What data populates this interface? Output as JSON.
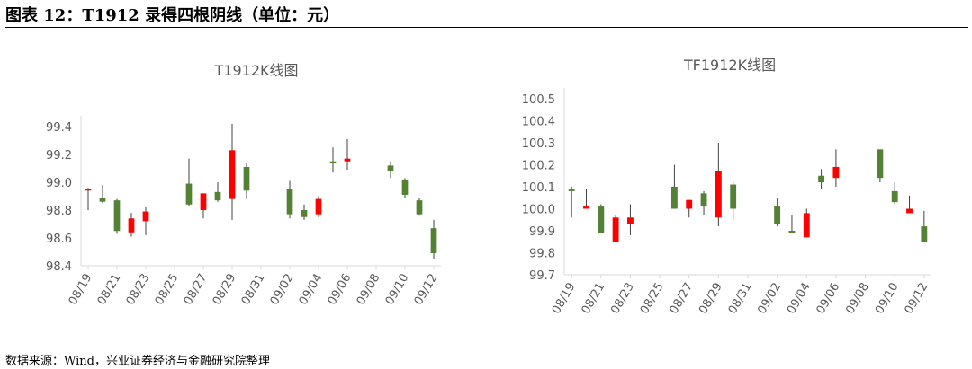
{
  "figure": {
    "title": "图表 12：T1912 录得四根阴线（单位：元）",
    "source": "数据来源：Wind，兴业证券经济与金融研究院整理"
  },
  "colors": {
    "up": "#ff0000",
    "down": "#548235",
    "wick": "#404040",
    "text": "#595959",
    "axis": "#d9d9d9"
  },
  "chart_data": [
    {
      "type": "candlestick",
      "title": "T1912K线图",
      "ylim": [
        98.4,
        99.4
      ],
      "yticks": [
        "99.4",
        "99.2",
        "99.0",
        "98.8",
        "98.6",
        "98.4"
      ],
      "x_tick_labels": [
        "08/19",
        "08/21",
        "08/23",
        "08/25",
        "08/27",
        "08/29",
        "08/31",
        "09/02",
        "09/04",
        "09/06",
        "09/08",
        "09/10",
        "09/12"
      ],
      "candles": [
        {
          "date": "08/19",
          "open": 98.95,
          "high": 98.96,
          "low": 98.8,
          "close": 98.95
        },
        {
          "date": "08/20",
          "open": 98.89,
          "high": 98.98,
          "low": 98.85,
          "close": 98.86
        },
        {
          "date": "08/21",
          "open": 98.87,
          "high": 98.88,
          "low": 98.63,
          "close": 98.65
        },
        {
          "date": "08/22",
          "open": 98.64,
          "high": 98.78,
          "low": 98.61,
          "close": 98.74
        },
        {
          "date": "08/23",
          "open": 98.72,
          "high": 98.82,
          "low": 98.62,
          "close": 98.79
        },
        {
          "date": "08/26",
          "open": 98.99,
          "high": 99.17,
          "low": 98.83,
          "close": 98.84
        },
        {
          "date": "08/27",
          "open": 98.8,
          "high": 98.92,
          "low": 98.74,
          "close": 98.92
        },
        {
          "date": "08/28",
          "open": 98.93,
          "high": 99.0,
          "low": 98.86,
          "close": 98.87
        },
        {
          "date": "08/29",
          "open": 98.88,
          "high": 99.42,
          "low": 98.73,
          "close": 99.23
        },
        {
          "date": "08/30",
          "open": 99.11,
          "high": 99.14,
          "low": 98.88,
          "close": 98.94
        },
        {
          "date": "09/02",
          "open": 98.95,
          "high": 99.01,
          "low": 98.74,
          "close": 98.77
        },
        {
          "date": "09/03",
          "open": 98.8,
          "high": 98.84,
          "low": 98.73,
          "close": 98.75
        },
        {
          "date": "09/04",
          "open": 98.77,
          "high": 98.9,
          "low": 98.75,
          "close": 98.88
        },
        {
          "date": "09/05",
          "open": 99.15,
          "high": 99.25,
          "low": 99.07,
          "close": 99.14
        },
        {
          "date": "09/06",
          "open": 99.15,
          "high": 99.31,
          "low": 99.09,
          "close": 99.17
        },
        {
          "date": "09/09",
          "open": 99.12,
          "high": 99.15,
          "low": 99.03,
          "close": 99.08
        },
        {
          "date": "09/10",
          "open": 99.02,
          "high": 99.03,
          "low": 98.89,
          "close": 98.91
        },
        {
          "date": "09/11",
          "open": 98.87,
          "high": 98.89,
          "low": 98.76,
          "close": 98.77
        },
        {
          "date": "09/12",
          "open": 98.67,
          "high": 98.73,
          "low": 98.45,
          "close": 98.49
        }
      ]
    },
    {
      "type": "candlestick",
      "title": "TF1912K线图",
      "ylim": [
        99.7,
        100.5
      ],
      "yticks": [
        "100.5",
        "100.4",
        "100.3",
        "100.2",
        "100.1",
        "100.0",
        "99.9",
        "99.8",
        "99.7"
      ],
      "x_tick_labels": [
        "08/19",
        "08/21",
        "08/23",
        "08/25",
        "08/27",
        "08/29",
        "08/31",
        "09/02",
        "09/04",
        "09/06",
        "09/08",
        "09/10",
        "09/12"
      ],
      "candles": [
        {
          "date": "08/19",
          "open": 100.09,
          "high": 100.1,
          "low": 99.96,
          "close": 100.08
        },
        {
          "date": "08/20",
          "open": 100.0,
          "high": 100.09,
          "low": 100.0,
          "close": 100.01
        },
        {
          "date": "08/21",
          "open": 100.01,
          "high": 100.02,
          "low": 99.89,
          "close": 99.89
        },
        {
          "date": "08/22",
          "open": 99.85,
          "high": 99.97,
          "low": 99.85,
          "close": 99.96
        },
        {
          "date": "08/23",
          "open": 99.93,
          "high": 100.02,
          "low": 99.88,
          "close": 99.96
        },
        {
          "date": "08/26",
          "open": 100.1,
          "high": 100.2,
          "low": 100.0,
          "close": 100.0
        },
        {
          "date": "08/27",
          "open": 100.0,
          "high": 100.04,
          "low": 99.96,
          "close": 100.04
        },
        {
          "date": "08/28",
          "open": 100.07,
          "high": 100.08,
          "low": 99.97,
          "close": 100.01
        },
        {
          "date": "08/29",
          "open": 99.96,
          "high": 100.3,
          "low": 99.92,
          "close": 100.17
        },
        {
          "date": "08/30",
          "open": 100.11,
          "high": 100.12,
          "low": 99.95,
          "close": 100.0
        },
        {
          "date": "09/02",
          "open": 100.01,
          "high": 100.05,
          "low": 99.92,
          "close": 99.93
        },
        {
          "date": "09/03",
          "open": 99.9,
          "high": 99.97,
          "low": 99.89,
          "close": 99.89
        },
        {
          "date": "09/04",
          "open": 99.87,
          "high": 100.0,
          "low": 99.87,
          "close": 99.98
        },
        {
          "date": "09/05",
          "open": 100.15,
          "high": 100.18,
          "low": 100.09,
          "close": 100.12
        },
        {
          "date": "09/06",
          "open": 100.14,
          "high": 100.27,
          "low": 100.1,
          "close": 100.19
        },
        {
          "date": "09/09",
          "open": 100.27,
          "high": 100.27,
          "low": 100.12,
          "close": 100.14
        },
        {
          "date": "09/10",
          "open": 100.08,
          "high": 100.12,
          "low": 100.02,
          "close": 100.03
        },
        {
          "date": "09/11",
          "open": 99.98,
          "high": 100.06,
          "low": 99.98,
          "close": 100.0
        },
        {
          "date": "09/12",
          "open": 99.92,
          "high": 99.99,
          "low": 99.85,
          "close": 99.85
        }
      ]
    }
  ]
}
